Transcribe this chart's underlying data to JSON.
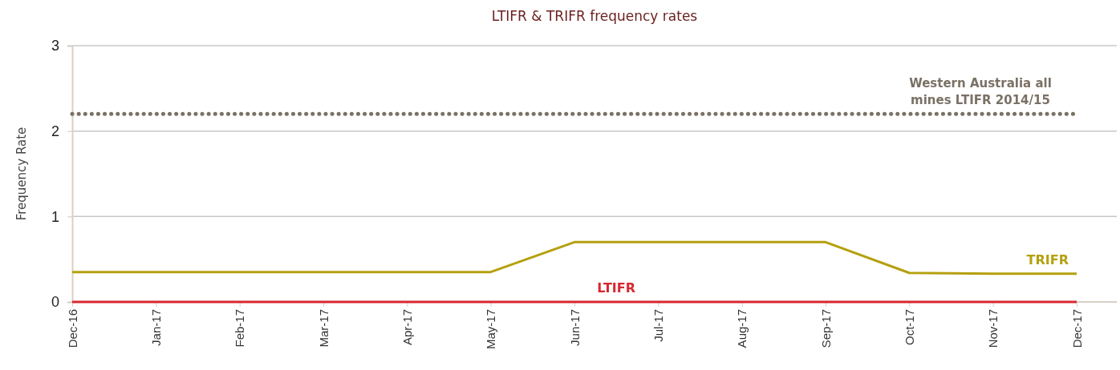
{
  "chart_data": {
    "type": "line",
    "title": "LTIFR & TRIFR frequency rates",
    "ylabel": "Frequency Rate",
    "categories": [
      "Dec-16",
      "Jan-17",
      "Feb-17",
      "Mar-17",
      "Apr-17",
      "May-17",
      "Jun-17",
      "Jul-17",
      "Aug-17",
      "Sep-17",
      "Oct-17",
      "Nov-17",
      "Dec-17"
    ],
    "series": [
      {
        "name": "TRIFR",
        "color": "#b5a00f",
        "values": [
          0.35,
          0.35,
          0.35,
          0.35,
          0.35,
          0.35,
          0.7,
          0.7,
          0.7,
          0.7,
          0.34,
          0.33,
          0.33
        ]
      },
      {
        "name": "LTIFR",
        "color": "#d7282f",
        "values": [
          0,
          0,
          0,
          0,
          0,
          0,
          0,
          0,
          0,
          0,
          0,
          0,
          0
        ]
      }
    ],
    "ylim": [
      0,
      3
    ],
    "yticks": [
      0,
      1,
      2,
      3
    ],
    "grid": "y",
    "legend": false,
    "marker": "none",
    "line_style": "solid",
    "ref_lines": [
      {
        "axis": "y",
        "value": 2.2,
        "label": "Western Australia all mines LTIFR 2014/15",
        "color": "#7a7165",
        "line_style": "dotted"
      }
    ]
  }
}
